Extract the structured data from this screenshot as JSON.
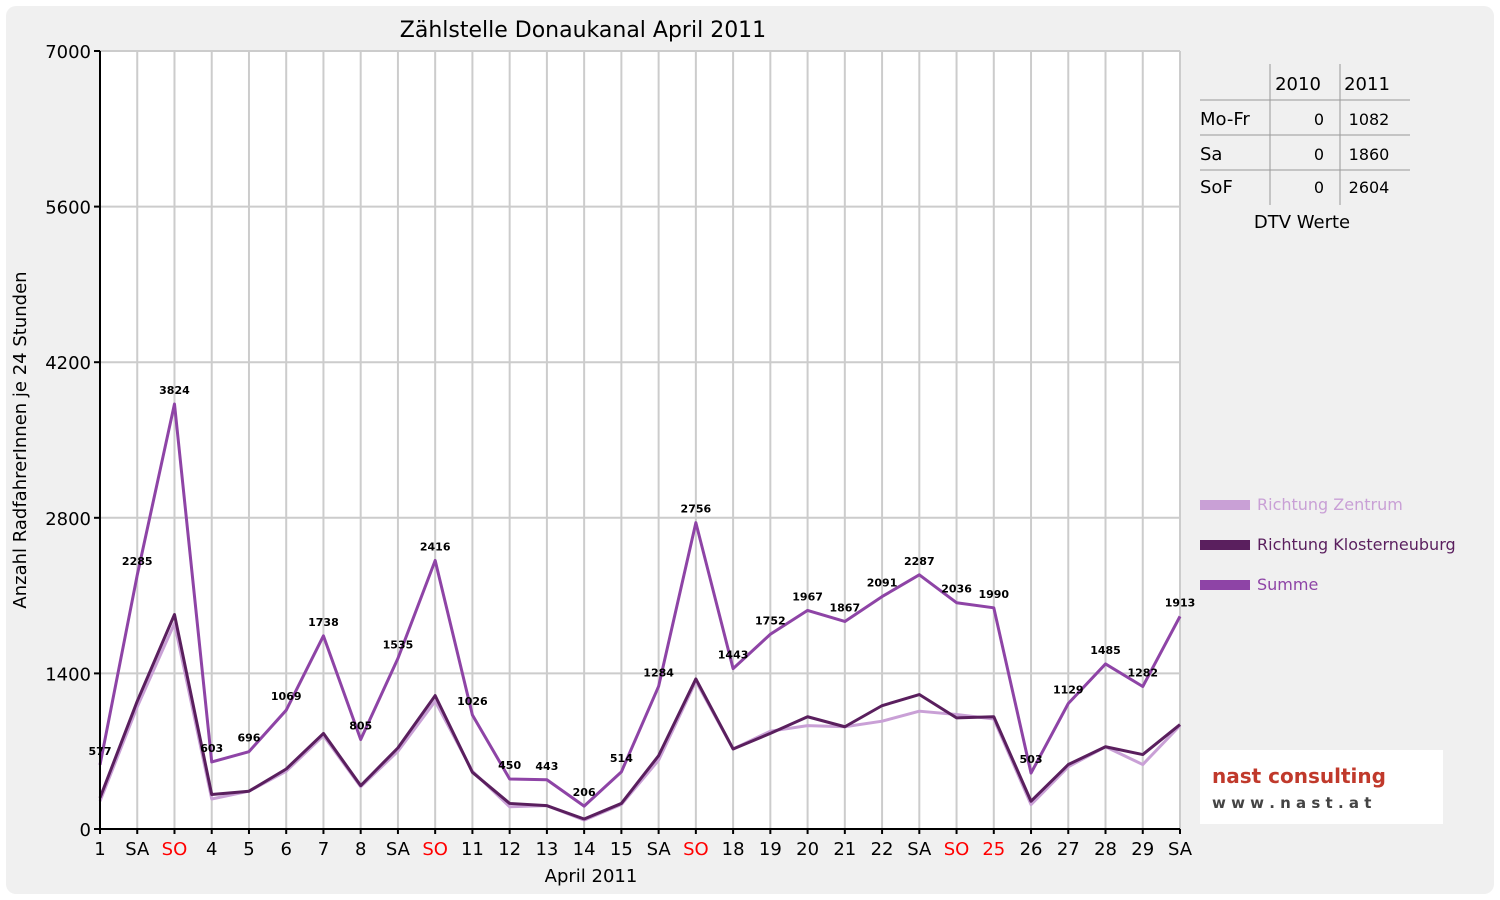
{
  "chart_data": {
    "type": "line",
    "title": "Zählstelle Donaukanal April 2011",
    "xlabel": "April 2011",
    "ylabel": "Anzahl RadfahrerInnen je 24 Stunden",
    "ylim": [
      0,
      7000
    ],
    "yticks": [
      "0",
      "1400",
      "2800",
      "4200",
      "5600",
      "7000"
    ],
    "categories": [
      "1",
      "SA",
      "SO",
      "4",
      "5",
      "6",
      "7",
      "8",
      "SA",
      "SO",
      "11",
      "12",
      "13",
      "14",
      "15",
      "SA",
      "SO",
      "18",
      "19",
      "20",
      "21",
      "22",
      "SA",
      "SO",
      "25",
      "26",
      "27",
      "28",
      "29",
      "SA"
    ],
    "highlight_categories": [
      2,
      9,
      16,
      23,
      24
    ],
    "series": [
      {
        "name": "Richtung Zentrum",
        "color": "#c9a0d6",
        "values": [
          250,
          1100,
          1850,
          270,
          340,
          520,
          840,
          380,
          700,
          1150,
          520,
          200,
          210,
          80,
          220,
          620,
          1330,
          720,
          880,
          930,
          920,
          970,
          1060,
          1030,
          990,
          220,
          560,
          740,
          580,
          930
        ]
      },
      {
        "name": "Richtung Klosterneuburg",
        "color": "#5a1f5e",
        "values": [
          280,
          1150,
          1930,
          310,
          340,
          540,
          860,
          390,
          730,
          1200,
          510,
          230,
          210,
          90,
          230,
          660,
          1350,
          720,
          860,
          1010,
          920,
          1110,
          1210,
          1000,
          1010,
          250,
          580,
          740,
          670,
          940
        ]
      },
      {
        "name": "Summe",
        "color": "#8e44a6",
        "values": [
          577,
          2285,
          3824,
          603,
          696,
          1069,
          1738,
          805,
          1535,
          2416,
          1026,
          450,
          443,
          206,
          514,
          1284,
          2756,
          1443,
          1752,
          1967,
          1867,
          2091,
          2287,
          2036,
          1990,
          503,
          1129,
          1485,
          1282,
          1913
        ]
      }
    ],
    "data_labels": [
      "577",
      "2285",
      "3824",
      "603",
      "696",
      "1069",
      "1738",
      "805",
      "1535",
      "2416",
      "1026",
      "450",
      "443",
      "206",
      "514",
      "1284",
      "2756",
      "1443",
      "1752",
      "1967",
      "1867",
      "2091",
      "2287",
      "2036",
      "1990",
      "503",
      "1129",
      "1485",
      "1282",
      "1913"
    ],
    "grid": true,
    "legend_placement": "right"
  },
  "dtv_table": {
    "headers": [
      "",
      "2010",
      "2011"
    ],
    "rows": [
      {
        "label": "Mo-Fr",
        "v2010": "0",
        "v2011": "1082"
      },
      {
        "label": "Sa",
        "v2010": "0",
        "v2011": "1860"
      },
      {
        "label": "SoF",
        "v2010": "0",
        "v2011": "2604"
      }
    ],
    "caption": "DTV Werte"
  },
  "logo": {
    "line1": "nast consulting",
    "line2": "w w w . n a s t . a t"
  },
  "colors": {
    "weekend_label": "#ff0000",
    "grid": "#cccccc"
  }
}
